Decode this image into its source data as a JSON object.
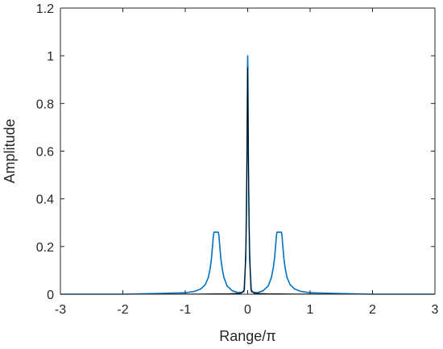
{
  "chart_data": {
    "type": "line",
    "xlabel": "Range/π",
    "ylabel": "Amplitude",
    "xlim": [
      -3,
      3
    ],
    "ylim": [
      0,
      1.2
    ],
    "xticks": [
      -3,
      -2,
      -1,
      0,
      1,
      2,
      3
    ],
    "yticks": [
      0,
      0.2,
      0.4,
      0.6,
      0.8,
      1,
      1.2
    ],
    "xtick_labels": [
      "-3",
      "-2",
      "-1",
      "0",
      "1",
      "2",
      "3"
    ],
    "ytick_labels": [
      "0",
      "0.2",
      "0.4",
      "0.6",
      "0.8",
      "1",
      "1.2"
    ],
    "grid": false,
    "series": [
      {
        "color": "#0072bd",
        "x": [
          -3,
          -2,
          -1.4,
          -1.0,
          -0.85,
          -0.75,
          -0.68,
          -0.63,
          -0.6,
          -0.58,
          -0.56,
          -0.55,
          -0.54,
          -0.47,
          -0.46,
          -0.45,
          -0.43,
          -0.41,
          -0.38,
          -0.33,
          -0.25,
          -0.15,
          -0.06,
          -0.03,
          -0.01,
          -0.003,
          0,
          0.003,
          0.01,
          0.03,
          0.06,
          0.15,
          0.25,
          0.33,
          0.38,
          0.41,
          0.43,
          0.45,
          0.46,
          0.47,
          0.54,
          0.55,
          0.56,
          0.58,
          0.6,
          0.63,
          0.68,
          0.75,
          0.85,
          1.0,
          1.4,
          2,
          3
        ],
        "y": [
          0,
          0,
          0.003,
          0.006,
          0.012,
          0.022,
          0.04,
          0.07,
          0.11,
          0.15,
          0.21,
          0.245,
          0.26,
          0.26,
          0.245,
          0.21,
          0.15,
          0.11,
          0.07,
          0.035,
          0.015,
          0.006,
          0.01,
          0.15,
          0.6,
          0.95,
          1.0,
          0.95,
          0.6,
          0.15,
          0.01,
          0.006,
          0.015,
          0.035,
          0.07,
          0.11,
          0.15,
          0.21,
          0.245,
          0.26,
          0.26,
          0.245,
          0.21,
          0.15,
          0.11,
          0.07,
          0.04,
          0.022,
          0.012,
          0.006,
          0.003,
          0,
          0
        ]
      },
      {
        "color": "#000000",
        "x": [
          -3,
          -1.5,
          -0.8,
          -0.3,
          -0.1,
          -0.05,
          -0.02,
          0,
          0.02,
          0.05,
          0.1,
          0.3,
          0.8,
          1.5,
          3
        ],
        "y": [
          0,
          0,
          0.001,
          0.002,
          0.004,
          0.02,
          0.3,
          0.95,
          0.3,
          0.02,
          0.004,
          0.002,
          0.001,
          0,
          0
        ]
      }
    ]
  }
}
